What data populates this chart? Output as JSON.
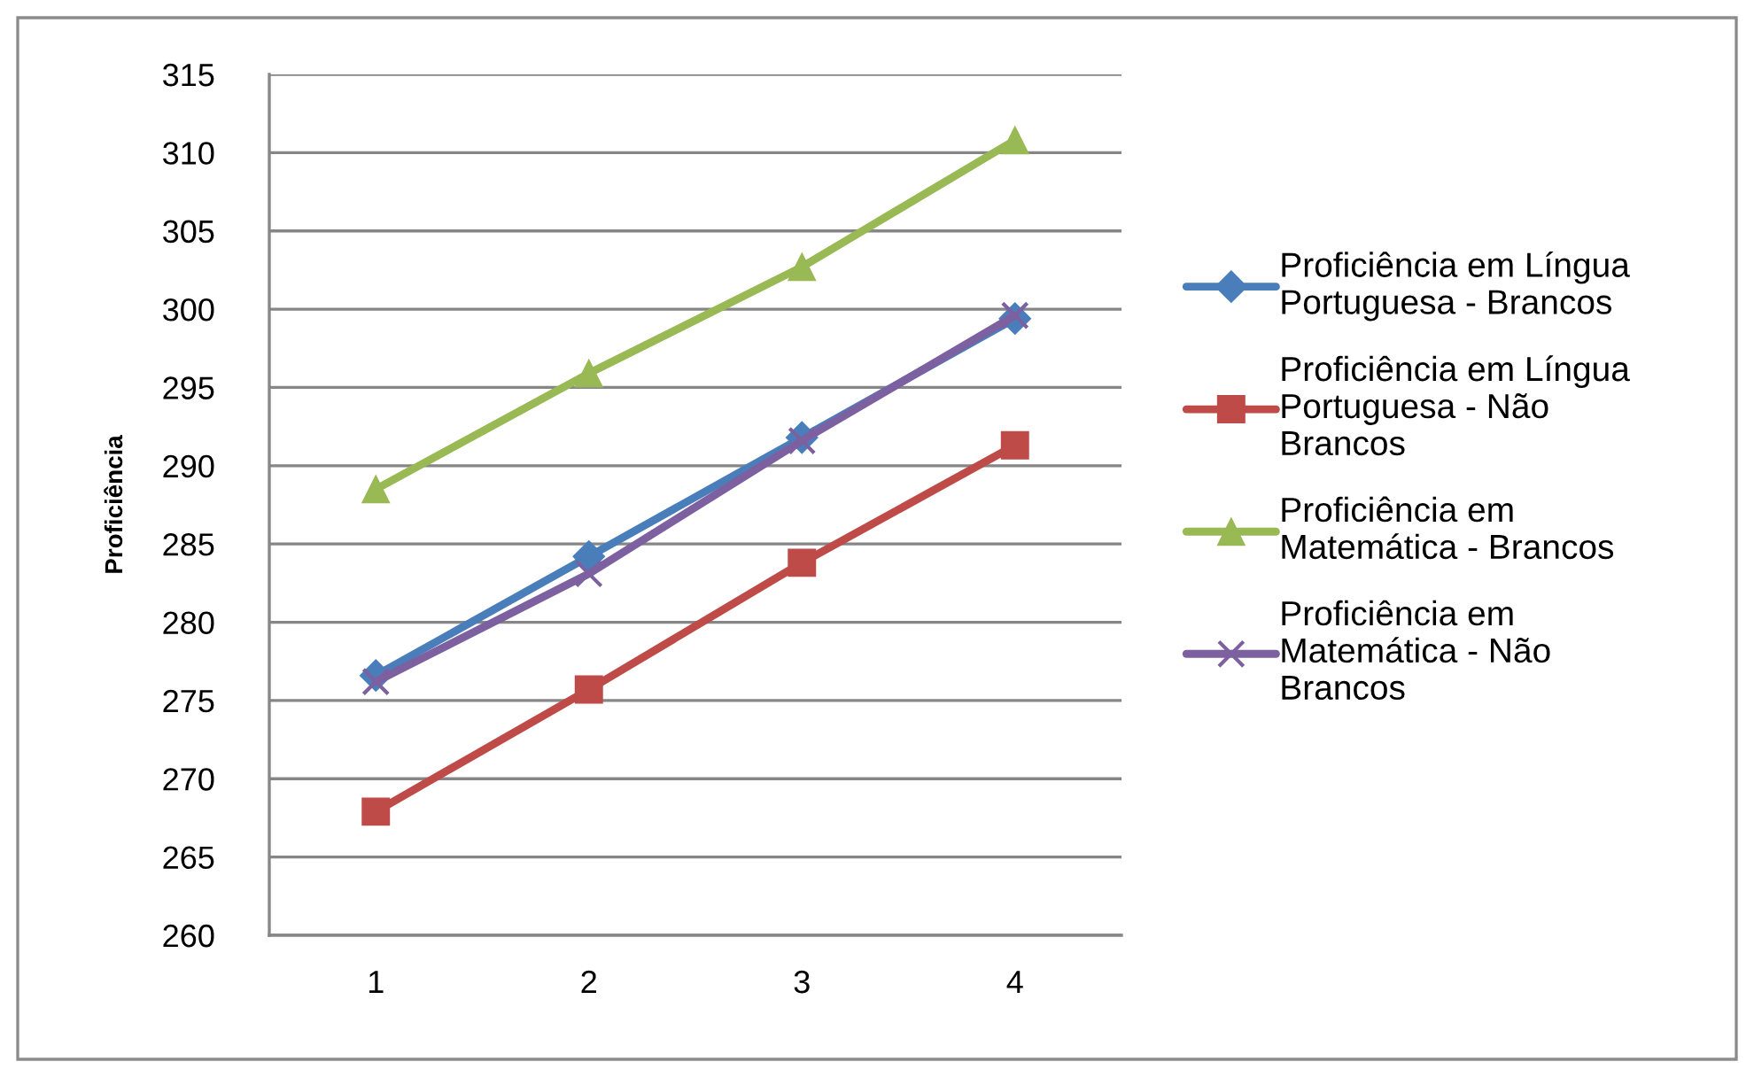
{
  "chart_data": {
    "type": "line",
    "ylabel": "Proficiência",
    "categories": [
      "1",
      "2",
      "3",
      "4"
    ],
    "series": [
      {
        "name": "Proficiência em Língua\nPortuguesa - Brancos",
        "color": "#4a7ebb",
        "marker": "diamond",
        "values": [
          276.6,
          284.2,
          291.8,
          299.4
        ]
      },
      {
        "name": "Proficiência em Língua\nPortuguesa - Não\nBrancos",
        "color": "#be4b48",
        "marker": "square",
        "values": [
          267.9,
          275.7,
          283.8,
          291.3
        ]
      },
      {
        "name": "Proficiência em\nMatemática - Brancos",
        "color": "#98b954",
        "marker": "triangle",
        "values": [
          288.5,
          295.9,
          302.7,
          310.8
        ]
      },
      {
        "name": "Proficiência em\nMatemática - Não\nBrancos",
        "color": "#7d60a0",
        "marker": "cross",
        "values": [
          276.2,
          283.1,
          291.6,
          299.6
        ]
      }
    ],
    "ylim": [
      260,
      315
    ],
    "yticks": [
      260,
      265,
      270,
      275,
      280,
      285,
      290,
      295,
      300,
      305,
      310,
      315
    ],
    "grid": "y",
    "legend": "right",
    "line_style": "solid"
  }
}
